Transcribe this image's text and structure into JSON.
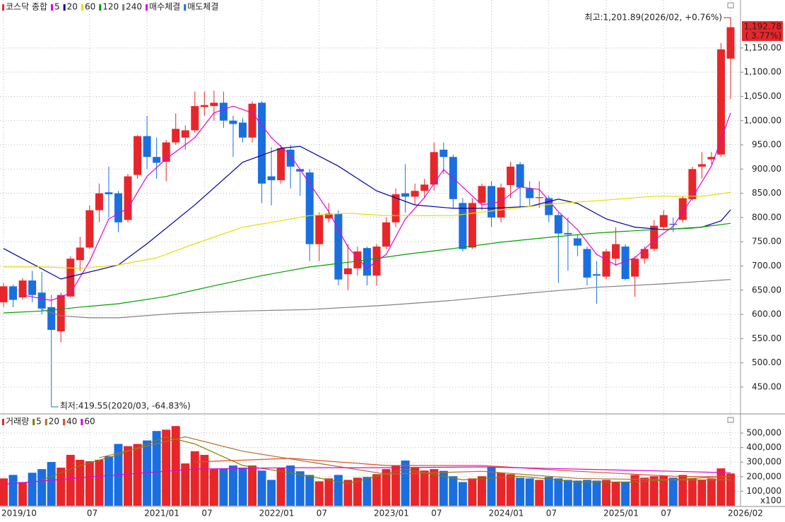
{
  "chart_data": [
    {
      "type": "candlestick",
      "name": "코스닥 종합",
      "up_color": "#e8262a",
      "down_color": "#1a6fe0",
      "open": [
        625,
        658,
        635,
        670,
        645,
        615,
        565,
        637,
        712,
        738,
        815,
        852,
        850,
        795,
        888,
        968,
        925,
        915,
        955,
        965,
        980,
        1028,
        1030,
        1037,
        1000,
        996,
        965,
        1037,
        885,
        877,
        940,
        900,
        893,
        745,
        798,
        808,
        683,
        695,
        737,
        680,
        740,
        790,
        850,
        843,
        855,
        868,
        940,
        925,
        830,
        738,
        830,
        865,
        800,
        867,
        910,
        860,
        840,
        840,
        805,
        768,
        757,
        735,
        683,
        678,
        715,
        740,
        678,
        715,
        735,
        780,
        787,
        795,
        838,
        905,
        920,
        930,
        1128
      ],
      "high": [
        665,
        662,
        675,
        690,
        688,
        640,
        645,
        720,
        760,
        825,
        870,
        905,
        855,
        890,
        970,
        1010,
        965,
        960,
        1015,
        990,
        1060,
        1060,
        1062,
        1060,
        1010,
        1005,
        1040,
        1040,
        945,
        950,
        950,
        900,
        900,
        810,
        830,
        815,
        745,
        740,
        740,
        745,
        800,
        860,
        910,
        870,
        880,
        955,
        955,
        930,
        840,
        840,
        870,
        875,
        870,
        915,
        915,
        875,
        875,
        845,
        810,
        800,
        765,
        740,
        710,
        735,
        780,
        745,
        720,
        740,
        795,
        815,
        800,
        845,
        905,
        935,
        935,
        1160,
        1201.89
      ],
      "low": [
        615,
        615,
        630,
        625,
        600,
        419.55,
        542,
        635,
        690,
        735,
        790,
        800,
        770,
        790,
        880,
        900,
        880,
        875,
        950,
        940,
        975,
        1010,
        1000,
        985,
        925,
        955,
        955,
        830,
        825,
        870,
        860,
        845,
        710,
        710,
        790,
        660,
        650,
        680,
        660,
        660,
        735,
        780,
        810,
        825,
        840,
        855,
        890,
        820,
        730,
        735,
        815,
        780,
        790,
        840,
        819,
        825,
        820,
        790,
        665,
        690,
        720,
        660,
        622,
        672,
        700,
        670,
        636,
        705,
        730,
        775,
        770,
        790,
        835,
        880,
        910,
        925,
        1045
      ],
      "close": [
        658,
        630,
        670,
        640,
        612,
        568,
        640,
        715,
        738,
        815,
        850,
        848,
        790,
        885,
        968,
        925,
        913,
        955,
        983,
        980,
        1030,
        1032,
        1037,
        1000,
        993,
        965,
        1035,
        870,
        877,
        943,
        905,
        895,
        745,
        805,
        808,
        672,
        695,
        730,
        680,
        740,
        790,
        848,
        843,
        855,
        868,
        935,
        925,
        838,
        735,
        830,
        865,
        800,
        862,
        905,
        862,
        840,
        842,
        805,
        767,
        765,
        742,
        676,
        680,
        730,
        745,
        673,
        715,
        735,
        783,
        805,
        785,
        840,
        900,
        910,
        925,
        1147,
        1192.78
      ],
      "ylim": [
        396,
        1249
      ],
      "yticks": [
        {
          "value": 450,
          "label": "450.00"
        },
        {
          "value": 500,
          "label": "500.00"
        },
        {
          "value": 550,
          "label": "550.00"
        },
        {
          "value": 600,
          "label": "600.00"
        },
        {
          "value": 650,
          "label": "650.00"
        },
        {
          "value": 700,
          "label": "700.00"
        },
        {
          "value": 750,
          "label": "750.00"
        },
        {
          "value": 800,
          "label": "800.00"
        },
        {
          "value": 850,
          "label": "850.00"
        },
        {
          "value": 900,
          "label": "900.00"
        },
        {
          "value": 950,
          "label": "950.00"
        },
        {
          "value": 1000,
          "label": "1,000.00"
        },
        {
          "value": 1050,
          "label": "1,050.00"
        },
        {
          "value": 1100,
          "label": "1,100.00"
        },
        {
          "value": 1150,
          "label": "1,150.00"
        }
      ],
      "series": [
        {
          "name": "5",
          "color": "#e000e0",
          "x": [
            "2019/12",
            "2020/03",
            "2020/05",
            "2020/07",
            "2020/09",
            "2020/11",
            "2021/01",
            "2021/03",
            "2021/06",
            "2021/08",
            "2021/10",
            "2021/12",
            "2022/02",
            "2022/04",
            "2022/06",
            "2022/08",
            "2022/10",
            "2022/12",
            "2023/02",
            "2023/04",
            "2023/06",
            "2023/08",
            "2023/10",
            "2023/12",
            "2024/02",
            "2024/04",
            "2024/06",
            "2024/08",
            "2024/10",
            "2024/12",
            "2025/02",
            "2025/04",
            "2025/06",
            "2025/08",
            "2025/10",
            "2025/12",
            "2026/02"
          ],
          "values": [
            640,
            629,
            644,
            710,
            797,
            819,
            885,
            921,
            965,
            1016,
            1030,
            1016,
            965,
            928,
            870,
            812,
            739,
            695,
            724,
            797,
            841,
            899,
            863,
            826,
            833,
            863,
            858,
            812,
            775,
            724,
            702,
            717,
            753,
            782,
            841,
            906,
            1016
          ]
        },
        {
          "name": "20",
          "color": "#0000a0",
          "x": [
            "2019/10",
            "2020/04",
            "2020/10",
            "2021/01",
            "2021/06",
            "2021/11",
            "2022/03",
            "2022/05",
            "2022/09",
            "2023/01",
            "2023/05",
            "2023/09",
            "2024/01",
            "2024/05",
            "2024/08",
            "2024/10",
            "2025/01",
            "2025/04",
            "2025/07",
            "2025/11",
            "2026/01",
            "2026/02"
          ],
          "values": [
            736,
            673,
            702,
            746,
            826,
            914,
            943,
            947,
            906,
            855,
            826,
            819,
            819,
            823,
            838,
            829,
            797,
            780,
            775,
            780,
            793,
            816
          ]
        },
        {
          "name": "60",
          "color": "#e0e000",
          "x": [
            "2019/10",
            "2020/02",
            "2020/06",
            "2020/10",
            "2021/02",
            "2021/06",
            "2021/11",
            "2022/02",
            "2022/06",
            "2022/10",
            "2023/02",
            "2023/09",
            "2024/02",
            "2024/08",
            "2025/01",
            "2025/06",
            "2025/11",
            "2026/02"
          ],
          "values": [
            698,
            698,
            695,
            702,
            717,
            746,
            780,
            790,
            804,
            809,
            804,
            804,
            816,
            829,
            836,
            844,
            844,
            852
          ]
        },
        {
          "name": "120",
          "color": "#00a000",
          "x": [
            "2019/10",
            "2020/02",
            "2020/06",
            "2020/10",
            "2021/03",
            "2021/08",
            "2022/01",
            "2022/06",
            "2022/11",
            "2023/04",
            "2023/09",
            "2024/02",
            "2024/07",
            "2024/12",
            "2025/05",
            "2025/10",
            "2026/02"
          ],
          "values": [
            603,
            607,
            615,
            622,
            637,
            659,
            680,
            698,
            710,
            724,
            736,
            749,
            759,
            768,
            774,
            778,
            788
          ]
        },
        {
          "name": "240",
          "color": "#808080",
          "x": [
            "2020/02",
            "2020/04",
            "2020/07",
            "2020/10",
            "2021/04",
            "2021/11",
            "2022/06",
            "2023/02",
            "2023/09",
            "2024/05",
            "2024/12",
            "2025/07",
            "2026/02"
          ],
          "values": [
            610,
            597,
            593,
            593,
            602,
            607,
            610,
            619,
            629,
            644,
            656,
            663,
            672
          ]
        }
      ],
      "legend_extra": [
        {
          "name": "매수체결",
          "color": "#e000e0"
        },
        {
          "name": "매도체결",
          "color": "#1a6fe0"
        }
      ],
      "high_annotation": "최고:1,201.89(2026/02, +0.76%)",
      "low_annotation": "최저:419.55(2020/03, -64.83%)",
      "last_price_label": "1,192.78",
      "last_change_label": "( 3.77%)",
      "grid": true
    },
    {
      "type": "bar",
      "name": "거래량",
      "categories": [
        "2019/10",
        null,
        null,
        null,
        null,
        null,
        null,
        null,
        null,
        "07",
        null,
        null,
        null,
        null,
        null,
        "2021/01",
        null,
        null,
        null,
        null,
        null,
        "07",
        null,
        null,
        null,
        null,
        null,
        "2022/01",
        null,
        null,
        null,
        null,
        null,
        "07",
        null,
        null,
        null,
        null,
        null,
        "2023/01",
        null,
        null,
        null,
        null,
        null,
        "07",
        null,
        null,
        null,
        null,
        null,
        "2024/01",
        null,
        null,
        null,
        null,
        null,
        "07",
        null,
        null,
        null,
        null,
        null,
        "2025/01",
        null,
        null,
        null,
        null,
        null,
        "07",
        null,
        null,
        null,
        null,
        null,
        null,
        "2026/02"
      ],
      "values": [
        188000,
        212000,
        163000,
        227000,
        252000,
        301000,
        262000,
        350000,
        316000,
        306000,
        316000,
        340000,
        425000,
        410000,
        425000,
        449000,
        514000,
        523000,
        548000,
        291000,
        375000,
        350000,
        252000,
        257000,
        277000,
        262000,
        277000,
        242000,
        178000,
        262000,
        277000,
        237000,
        212000,
        168000,
        188000,
        212000,
        178000,
        193000,
        198000,
        217000,
        252000,
        277000,
        311000,
        262000,
        242000,
        252000,
        240000,
        203000,
        163000,
        188000,
        203000,
        267000,
        227000,
        217000,
        193000,
        188000,
        178000,
        198000,
        188000,
        178000,
        173000,
        178000,
        173000,
        178000,
        163000,
        163000,
        212000,
        193000,
        203000,
        207000,
        193000,
        212000,
        188000,
        178000,
        188000,
        257000,
        222000
      ],
      "ylim": [
        0,
        612000
      ],
      "yticks": [
        {
          "value": 100000,
          "label": "100,000"
        },
        {
          "value": 200000,
          "label": "200,000"
        },
        {
          "value": 300000,
          "label": "300,000"
        },
        {
          "value": 400000,
          "label": "400,000"
        },
        {
          "value": 500000,
          "label": "500,000"
        }
      ],
      "unit_label": "x100",
      "series": [
        {
          "name": "5",
          "color": "#808000",
          "x": [
            "2020/02",
            "2020/06",
            "2020/10",
            "2021/03",
            "2021/06",
            "2021/11",
            "2022/04",
            "2022/10",
            "2023/04",
            "2023/10",
            "2024/04",
            "2024/10",
            "2025/04",
            "2025/10",
            "2026/02"
          ],
          "values": [
            178000,
            277000,
            350000,
            474000,
            425000,
            277000,
            227000,
            153000,
            252000,
            178000,
            203000,
            163000,
            163000,
            188000,
            203000
          ]
        },
        {
          "name": "20",
          "color": "#b07030",
          "x": [
            "2020/08",
            "2021/05",
            "2021/11",
            "2022/06",
            "2023/02",
            "2023/12",
            "2024/10",
            "2025/08",
            "2026/02"
          ],
          "values": [
            330000,
            474000,
            375000,
            301000,
            217000,
            237000,
            188000,
            178000,
            178000
          ]
        },
        {
          "name": "40",
          "color": "#e05020",
          "x": [
            "2021/06",
            "2022/04",
            "2023/02",
            "2023/12",
            "2024/10",
            "2025/08",
            "2026/02"
          ],
          "values": [
            301000,
            326000,
            277000,
            277000,
            237000,
            203000,
            198000
          ]
        },
        {
          "name": "60",
          "color": "#e000e0",
          "x": [
            "2019/10",
            "2020/08",
            "2021/06",
            "2022/04",
            "2023/02",
            "2023/12",
            "2024/10",
            "2025/08",
            "2026/02"
          ],
          "values": [
            148000,
            203000,
            252000,
            262000,
            262000,
            267000,
            252000,
            237000,
            227000
          ]
        }
      ]
    }
  ]
}
